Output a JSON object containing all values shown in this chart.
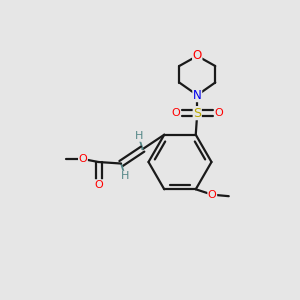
{
  "background_color": "#e6e6e6",
  "bond_color": "#1a1a1a",
  "colors": {
    "O": "#ff0000",
    "N": "#0000ee",
    "S": "#bbaa00",
    "H": "#558888",
    "C": "#1a1a1a"
  },
  "figsize": [
    3.0,
    3.0
  ],
  "dpi": 100
}
